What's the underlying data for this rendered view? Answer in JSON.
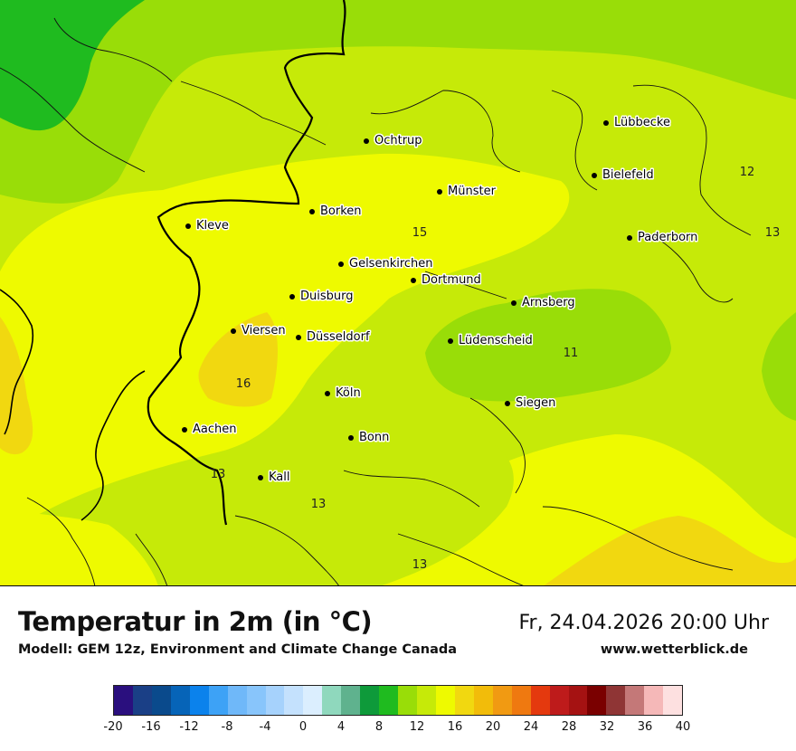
{
  "title": "Temperatur in 2m (in °C)",
  "subtitle": "Modell: GEM 12z, Environment and Climate Change Canada",
  "datetime": "Fr, 24.04.2026 20:00 Uhr",
  "website": "www.wetterblick.de",
  "cities": [
    {
      "name": "Lübbecke"
    },
    {
      "name": "Ochtrup"
    },
    {
      "name": "Bielefeld"
    },
    {
      "name": "Münster"
    },
    {
      "name": "Borken"
    },
    {
      "name": "Kleve"
    },
    {
      "name": "Paderborn"
    },
    {
      "name": "Gelsenkirchen"
    },
    {
      "name": "Dortmund"
    },
    {
      "name": "Duisburg"
    },
    {
      "name": "Arnsberg"
    },
    {
      "name": "Viersen"
    },
    {
      "name": "Düsseldorf"
    },
    {
      "name": "Lüdenscheid"
    },
    {
      "name": "Köln"
    },
    {
      "name": "Siegen"
    },
    {
      "name": "Aachen"
    },
    {
      "name": "Bonn"
    },
    {
      "name": "Kall"
    }
  ],
  "contour_values": [
    "12",
    "13",
    "15",
    "11",
    "16",
    "13",
    "13",
    "13"
  ],
  "legend": {
    "colors": [
      "#2a0f7e",
      "#1a3f86",
      "#0a4a8c",
      "#0664b8",
      "#0b82ec",
      "#3da2f6",
      "#6fb8f9",
      "#88c5fb",
      "#a6d2fc",
      "#c4e1fd",
      "#dbeefe",
      "#8fd8bd",
      "#5fb28e",
      "#0e9a3a",
      "#1fbb1f",
      "#99dd08",
      "#c6ea08",
      "#eefa00",
      "#f1d810",
      "#f2bc0a",
      "#f19a12",
      "#ef7910",
      "#e4390e",
      "#be1b1b",
      "#a51212",
      "#7a0000",
      "#8f3535",
      "#c47878",
      "#f5b8b8",
      "#fde0e0"
    ],
    "ticks": [
      "-20",
      "-16",
      "-12",
      "-8",
      "-4",
      "0",
      "4",
      "8",
      "12",
      "16",
      "20",
      "24",
      "28",
      "32",
      "36",
      "40"
    ]
  },
  "chart_data": {
    "type": "heatmap",
    "variable": "Temperatur in 2m",
    "unit": "°C",
    "range": [
      -20,
      40
    ],
    "step": 2,
    "contour_labels": [
      11,
      12,
      13,
      13,
      13,
      13,
      15,
      16
    ]
  }
}
